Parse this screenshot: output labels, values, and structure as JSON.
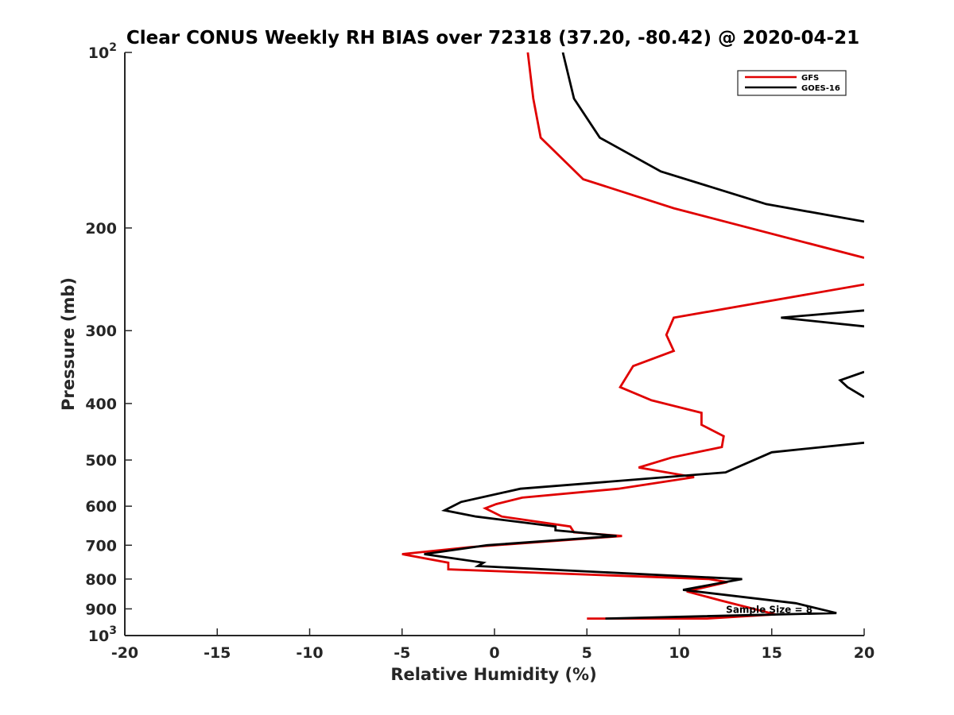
{
  "chart_data": {
    "type": "line",
    "title": "Clear CONUS Weekly RH BIAS over 72318 (37.20, -80.42) @ 2020-04-21",
    "xlabel": "Relative Humidity (%)",
    "ylabel": "Pressure (mb)",
    "xlim": [
      -20,
      20
    ],
    "ylim": [
      100,
      1000
    ],
    "y_scale": "log",
    "y_reversed": true,
    "grid": false,
    "legend_position": "top-right",
    "x_ticks": [
      "-20",
      "-15",
      "-10",
      "-5",
      "0",
      "5",
      "10",
      "15",
      "20"
    ],
    "y_ticks": [
      {
        "value": 100,
        "base": "10",
        "exp": "2",
        "label": ""
      },
      {
        "value": 200,
        "label": "200"
      },
      {
        "value": 300,
        "label": "300"
      },
      {
        "value": 400,
        "label": "400"
      },
      {
        "value": 500,
        "label": "500"
      },
      {
        "value": 600,
        "label": "600"
      },
      {
        "value": 700,
        "label": "700"
      },
      {
        "value": 800,
        "label": "800"
      },
      {
        "value": 900,
        "label": "900"
      },
      {
        "value": 1000,
        "base": "10",
        "exp": "3",
        "label": ""
      }
    ],
    "annotation": {
      "text": "Sample Size = 8",
      "x": 12.5,
      "y": 900
    },
    "series": [
      {
        "name": "GFS",
        "color": "#e00000",
        "points": [
          [
            1.8,
            100
          ],
          [
            2.1,
            120
          ],
          [
            2.5,
            140
          ],
          [
            4.8,
            165
          ],
          [
            9.7,
            185
          ],
          [
            20,
            225
          ],
          [
            null,
            null
          ],
          [
            20,
            250
          ],
          [
            9.7,
            285
          ],
          [
            9.3,
            305
          ],
          [
            9.7,
            325
          ],
          [
            7.5,
            345
          ],
          [
            6.8,
            375
          ],
          [
            8.5,
            395
          ],
          [
            11.2,
            415
          ],
          [
            11.2,
            435
          ],
          [
            12.4,
            455
          ],
          [
            12.3,
            475
          ],
          [
            9.6,
            495
          ],
          [
            7.8,
            515
          ],
          [
            10.8,
            535
          ],
          [
            6.7,
            560
          ],
          [
            1.5,
            580
          ],
          [
            0.1,
            595
          ],
          [
            -0.5,
            605
          ],
          [
            0.4,
            625
          ],
          [
            4.1,
            650
          ],
          [
            4.3,
            665
          ],
          [
            6.9,
            675
          ],
          [
            -1.3,
            705
          ],
          [
            -5,
            725
          ],
          [
            -2.5,
            750
          ],
          [
            -2.5,
            770
          ],
          [
            11.6,
            800
          ],
          [
            12.6,
            810
          ],
          [
            10.4,
            840
          ],
          [
            12.2,
            870
          ],
          [
            15.2,
            920
          ],
          [
            11.5,
            935
          ],
          [
            5,
            935
          ]
        ]
      },
      {
        "name": "GOES-16",
        "color": "#000000",
        "points": [
          [
            3.7,
            100
          ],
          [
            4.3,
            120
          ],
          [
            5.7,
            140
          ],
          [
            9,
            160
          ],
          [
            14.7,
            182
          ],
          [
            20,
            195
          ],
          [
            null,
            null
          ],
          [
            20,
            277
          ],
          [
            15.5,
            285
          ],
          [
            20,
            295
          ],
          [
            null,
            null
          ],
          [
            20,
            353
          ],
          [
            18.7,
            365
          ],
          [
            19.1,
            375
          ],
          [
            20,
            390
          ],
          [
            null,
            null
          ],
          [
            20,
            467
          ],
          [
            15,
            485
          ],
          [
            12.5,
            525
          ],
          [
            1.4,
            560
          ],
          [
            -1.8,
            590
          ],
          [
            -2.7,
            610
          ],
          [
            -1,
            625
          ],
          [
            3.3,
            650
          ],
          [
            3.3,
            660
          ],
          [
            6.6,
            675
          ],
          [
            -0.4,
            700
          ],
          [
            -3.8,
            725
          ],
          [
            -0.6,
            750
          ],
          [
            -0.9,
            760
          ],
          [
            13.4,
            800
          ],
          [
            12,
            815
          ],
          [
            10.2,
            835
          ],
          [
            16.3,
            880
          ],
          [
            18.5,
            915
          ],
          [
            6,
            935
          ]
        ]
      }
    ]
  }
}
